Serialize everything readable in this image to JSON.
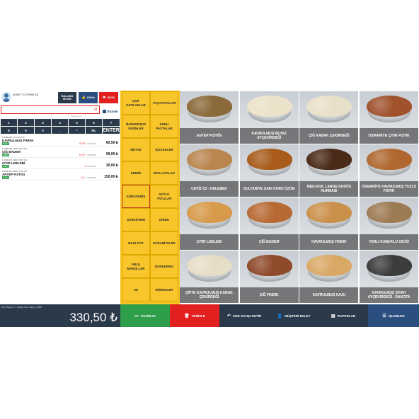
{
  "user": {
    "name": "AHMET ÖZ PINAR AŞ"
  },
  "toolbar": {
    "btn1": "BALANS MODE",
    "btn2": "Kilitle",
    "btn3": "ÇIKIŞ"
  },
  "search": {
    "query_icon": "Q",
    "hint": "Klavyeyi Aç",
    "urunler": "Ürünler"
  },
  "keypad": {
    "row1": [
      "1",
      "2",
      "3",
      "4",
      "5",
      "6",
      "7"
    ],
    "row2": [
      "8",
      "9",
      "0",
      ".",
      "*",
      "SİL",
      "ENTER"
    ]
  },
  "cart": [
    {
      "meta": "# 2980405 KG    KDV %8",
      "name": "KAVRULMUŞ FINDIK",
      "badge": "İndirim",
      "qty": "0,55",
      "unit": "x 110,00 ₺",
      "total": "60,50 ₺"
    },
    {
      "meta": "# 2980403 ADET    KDV %8",
      "name": "ÇİĞ BADEM",
      "badge": "İndirim",
      "qty": "0,75",
      "unit": "x 120,00 ₺",
      "total": "90,00 ₺"
    },
    {
      "meta": "# 2980404 ADET    KDV %8",
      "name": "ÇITIR LEBLEBİ",
      "badge": "İndirim",
      "qty": "1",
      "unit": "x 30,00 ₺",
      "total": "30,00 ₺"
    },
    {
      "meta": "# 2980401 ADET    KDV %8",
      "name": "ANTEP FISTIĞI",
      "badge": "İndirim",
      "qty": "1,5",
      "unit": "x 100,00 ₺",
      "total": "150,00 ₺"
    }
  ],
  "totals": {
    "info": "Ürün Sayısı: 4 - Toplam Ürün Sayısı: 3,800",
    "amount": "330,50 ₺"
  },
  "categories": [
    [
      "ÇOK SATILANLAR",
      "YAŞ PASTALAR"
    ],
    [
      "BARKODSUZ ÜRÜNLER",
      "KURU PASTALAR"
    ],
    [
      "MEYVE",
      "İÇECEKLER"
    ],
    [
      "SEBZE",
      "BAKLAVALAR"
    ],
    [
      "KURUYEMİŞ",
      "SÜTLÜ TATLILAR"
    ],
    [
      "ŞARKÜTERİ",
      "DİĞER"
    ],
    [
      "BAKLİYAT",
      "KURABİYELER"
    ],
    [
      "UNLU MAMÜLLER",
      "DONDURMA"
    ],
    [
      "SU",
      "BÖREKLER"
    ]
  ],
  "active_category": "KURUYEMİŞ",
  "products": [
    {
      "label": "ANTEP FISTIĞI",
      "color": "#8a6a3a"
    },
    {
      "label": "KAVRULMUŞ BEYAZ AYÇEKİRDEĞİ",
      "color": "#ece2c9"
    },
    {
      "label": "ÇİĞ KABAK ÇEKİRDEĞİ",
      "color": "#e8dfc8"
    },
    {
      "label": "OSMANİYE ÇITIR FISTIK",
      "color": "#a0522d"
    },
    {
      "label": "CEVİZ İÇİ - KELEBEK",
      "color": "#b9864f"
    },
    {
      "label": "SULTANİYE SARI KURU ÜZÜM",
      "color": "#a85b1a"
    },
    {
      "label": "MEDJOUL LARGE KUDÜS HURMASI",
      "color": "#4a2a18"
    },
    {
      "label": "OSMANİYE KAVRULMUŞ TUZLU FISTIK",
      "color": "#b06830"
    },
    {
      "label": "ÇITIR LEBLEBİ",
      "color": "#d79a4a"
    },
    {
      "label": "ÇİĞ BADEM",
      "color": "#b86a35"
    },
    {
      "label": "KAVRULMUŞ FINDIK",
      "color": "#c9904a"
    },
    {
      "label": "YERLİ KABUKLU CEVİZ",
      "color": "#9c7a52"
    },
    {
      "label": "ÇİFTE KAVRULMUŞ KABAK ÇEKİRDEĞİ",
      "color": "#e6ddc6"
    },
    {
      "label": "ÇİĞ FINDIK",
      "color": "#8e4a2a"
    },
    {
      "label": "KAVRULMUŞ KAJU",
      "color": "#d9a865"
    },
    {
      "label": "KAVRULMUŞ SİYAH AYÇEKİRDEĞİ - DAKOTA",
      "color": "#3c3c3c"
    }
  ],
  "actions": [
    {
      "label": "TAHSİLAT",
      "icon": "cash-icon",
      "color": "#2e9e4b"
    },
    {
      "label": "TEMİZLE",
      "icon": "trash-icon",
      "color": "#e1201f"
    },
    {
      "label": "SON SATIŞI GETİR",
      "icon": "reply-icon",
      "color": "#2b3a4a"
    },
    {
      "label": "MÜŞTERİ EKLET",
      "icon": "user-icon",
      "color": "#2b3a4a"
    },
    {
      "label": "RAPORLAR",
      "icon": "chart-icon",
      "color": "#2b3a4a"
    },
    {
      "label": "İŞLEMLER",
      "icon": "list-icon",
      "color": "#2a4e7d"
    }
  ]
}
